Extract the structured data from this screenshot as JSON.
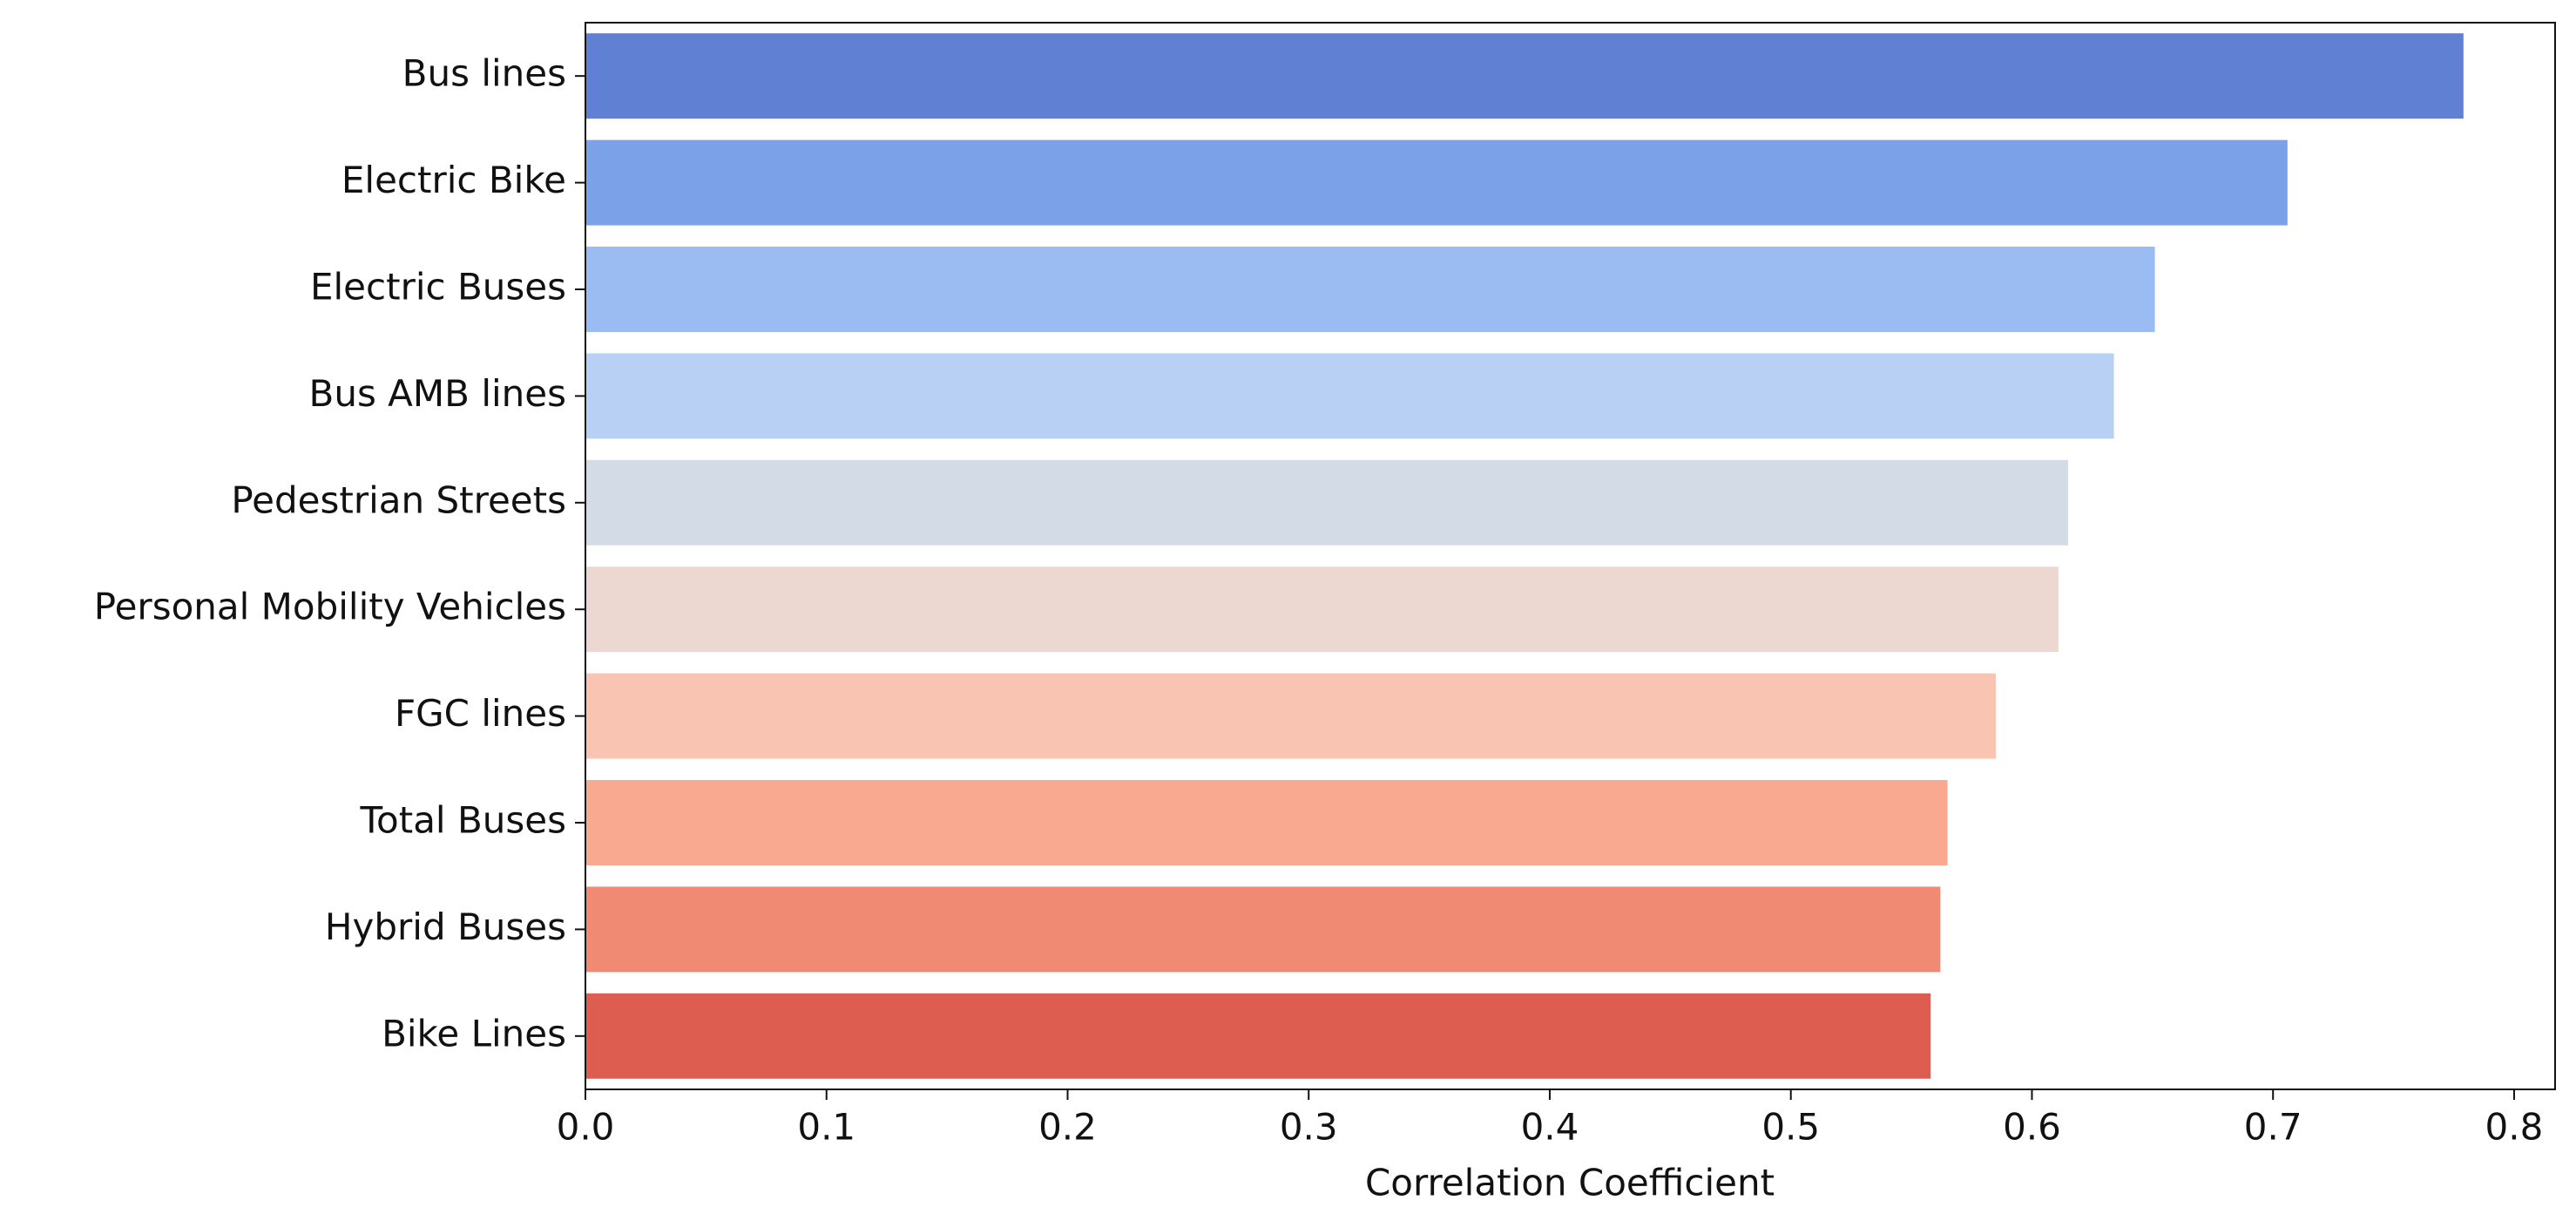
{
  "chart_data": {
    "type": "barh",
    "xlabel": "Correlation Coefficient",
    "categories": [
      "Bus lines",
      "Electric Bike",
      "Electric Buses",
      "Bus AMB lines",
      "Pedestrian Streets",
      "Personal Mobility Vehicles",
      "FGC lines",
      "Total Buses",
      "Hybrid Buses",
      "Bike Lines"
    ],
    "values": [
      0.779,
      0.706,
      0.651,
      0.634,
      0.615,
      0.611,
      0.585,
      0.565,
      0.562,
      0.558
    ],
    "colors": [
      "#6080d4",
      "#7ba1e8",
      "#9abcf3",
      "#b7d0f4",
      "#d3dce6",
      "#ecd8d0",
      "#f9c4b1",
      "#f9a98f",
      "#f08a72",
      "#dd5e50"
    ],
    "xlim": [
      0,
      0.817
    ],
    "xticks": [
      {
        "value": 0,
        "label": "0.0"
      },
      0.1,
      0.2,
      0.3,
      0.4,
      0.5,
      0.6,
      0.7,
      0.8
    ],
    "grid": false
  }
}
